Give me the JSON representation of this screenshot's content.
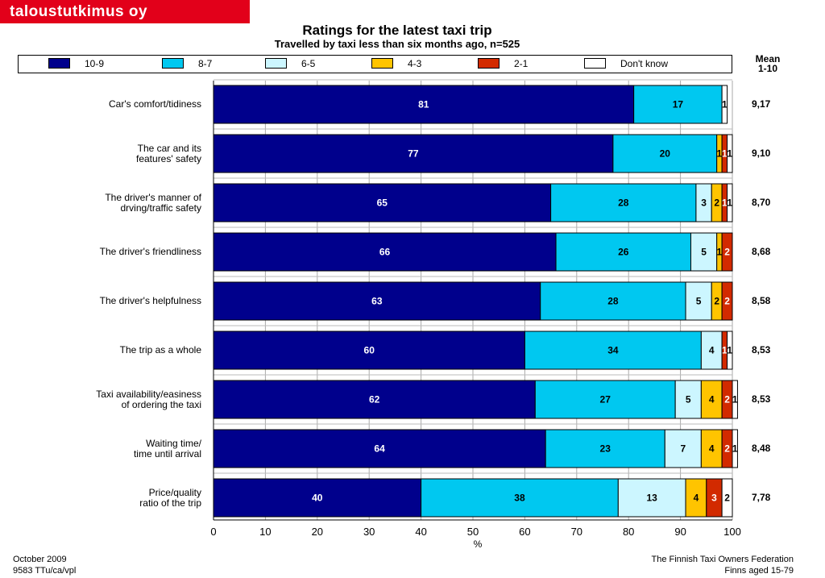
{
  "brand": "taloustutkimus oy",
  "footer": {
    "left_line1": "October 2009",
    "left_line2": "9583 TTu/ca/vpl",
    "right_line1": "The Finnish Taxi Owners Federation",
    "right_line2": "Finns aged 15-79"
  },
  "chart_data": {
    "type": "bar",
    "orientation": "horizontal",
    "stacked": true,
    "title": "Ratings for the latest taxi trip",
    "subtitle": "Travelled by taxi less than six months ago, n=525",
    "xlabel": "%",
    "xlim": [
      0,
      100
    ],
    "x_ticks": [
      "0",
      "10",
      "20",
      "30",
      "40",
      "50",
      "60",
      "70",
      "80",
      "90",
      "100"
    ],
    "grid": true,
    "legend_position": "top",
    "mean_header": [
      "Mean",
      "1-10"
    ],
    "categories": [
      [
        "Car's comfort/tidiness"
      ],
      [
        "The car and its",
        "features' safety"
      ],
      [
        "The driver's manner of",
        "drving/traffic safety"
      ],
      [
        "The driver's friendliness"
      ],
      [
        "The driver's helpfulness"
      ],
      [
        "The trip as a whole"
      ],
      [
        "Taxi availability/easiness",
        "of ordering the taxi"
      ],
      [
        "Waiting time/",
        "time until arrival"
      ],
      [
        "Price/quality",
        "ratio of the trip"
      ]
    ],
    "series": [
      {
        "name": "10-9",
        "color": "#00008c",
        "label_color": "#ffffff",
        "values": [
          81,
          77,
          65,
          66,
          63,
          60,
          62,
          64,
          40
        ]
      },
      {
        "name": "8-7",
        "color": "#00c8f0",
        "label_color": "#000000",
        "values": [
          17,
          20,
          28,
          26,
          28,
          34,
          27,
          23,
          38
        ]
      },
      {
        "name": "6-5",
        "color": "#ccf6ff",
        "label_color": "#000000",
        "values": [
          0,
          0,
          3,
          5,
          5,
          4,
          5,
          7,
          13
        ]
      },
      {
        "name": "4-3",
        "color": "#ffc400",
        "label_color": "#000000",
        "values": [
          0,
          1,
          2,
          1,
          2,
          0,
          4,
          4,
          4
        ]
      },
      {
        "name": "2-1",
        "color": "#d22a00",
        "label_color": "#ffffff",
        "values": [
          0,
          1,
          1,
          2,
          2,
          1,
          2,
          2,
          3
        ]
      },
      {
        "name": "Don't know",
        "color": "#ffffff",
        "label_color": "#000000",
        "values": [
          1,
          1,
          1,
          0,
          0,
          1,
          1,
          1,
          2
        ]
      }
    ],
    "means": [
      "9,17",
      "9,10",
      "8,70",
      "8,68",
      "8,58",
      "8,53",
      "8,53",
      "8,48",
      "7,78"
    ]
  }
}
